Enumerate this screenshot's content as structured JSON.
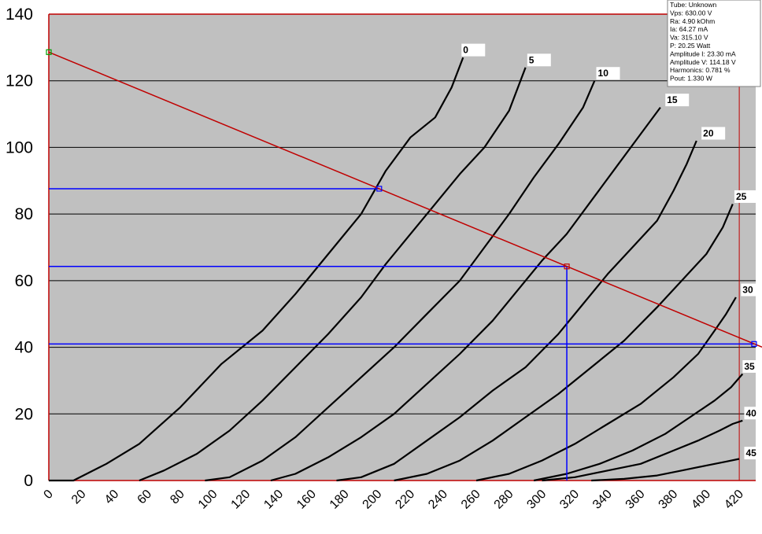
{
  "info_panel": {
    "lines": [
      "Tube: Unknown",
      "Vps: 630.00 V",
      "Ra: 4.90 kOhm",
      "Ia: 64.27 mA",
      "Va: 315.10 V",
      "P: 20.25 Watt",
      "Amplitude I: 23.30 mA",
      "Amplitude V: 114.18 V",
      "Harmonics: 0.781 %",
      "Pout: 1.330 W"
    ]
  },
  "colors": {
    "plot_bg": "#c0c0c0",
    "gridline": "#000000",
    "curve": "#000000",
    "load_line": "#c00000",
    "operating_lines": "#0000ff",
    "frame": "#c00000"
  },
  "chart_data": {
    "type": "line",
    "xlim": [
      0,
      430
    ],
    "ylim": [
      0,
      140
    ],
    "x_ticks": [
      0,
      20,
      40,
      60,
      80,
      100,
      120,
      140,
      160,
      180,
      200,
      220,
      240,
      260,
      280,
      300,
      320,
      340,
      360,
      380,
      400,
      420
    ],
    "y_ticks": [
      0,
      20,
      40,
      60,
      80,
      100,
      120,
      140
    ],
    "grid": "horizontal",
    "series": [
      {
        "name": "0",
        "x": [
          0,
          15,
          35,
          55,
          80,
          105,
          130,
          150,
          170,
          190,
          205,
          220,
          235,
          245,
          252
        ],
        "y": [
          0,
          0,
          5,
          11,
          22,
          35,
          45,
          56,
          68,
          80,
          93,
          103,
          109,
          118,
          127
        ]
      },
      {
        "name": "5",
        "x": [
          55,
          70,
          90,
          110,
          130,
          150,
          170,
          190,
          205,
          220,
          235,
          250,
          265,
          280,
          290
        ],
        "y": [
          0,
          3,
          8,
          15,
          24,
          34,
          44,
          55,
          65,
          74,
          83,
          92,
          100,
          111,
          124
        ]
      },
      {
        "name": "10",
        "x": [
          95,
          110,
          130,
          150,
          170,
          190,
          210,
          230,
          250,
          265,
          280,
          295,
          310,
          325,
          332
        ],
        "y": [
          0,
          1,
          6,
          13,
          22,
          31,
          40,
          50,
          60,
          70,
          80,
          91,
          101,
          112,
          120
        ]
      },
      {
        "name": "15",
        "x": [
          135,
          150,
          170,
          190,
          210,
          230,
          250,
          270,
          285,
          300,
          315,
          330,
          345,
          360,
          372
        ],
        "y": [
          0,
          2,
          7,
          13,
          20,
          29,
          38,
          48,
          57,
          66,
          74,
          84,
          94,
          104,
          112
        ]
      },
      {
        "name": "20",
        "x": [
          175,
          190,
          210,
          230,
          250,
          270,
          290,
          310,
          325,
          340,
          355,
          370,
          380,
          388,
          394
        ],
        "y": [
          0,
          1,
          5,
          12,
          19,
          27,
          34,
          44,
          53,
          62,
          70,
          78,
          87,
          95,
          102
        ]
      },
      {
        "name": "25",
        "x": [
          210,
          230,
          250,
          270,
          290,
          310,
          330,
          350,
          370,
          385,
          400,
          410,
          416
        ],
        "y": [
          0,
          2,
          6,
          12,
          19,
          26,
          34,
          42,
          52,
          60,
          68,
          76,
          83
        ]
      },
      {
        "name": "30",
        "x": [
          260,
          280,
          300,
          320,
          340,
          360,
          380,
          395,
          405,
          412,
          418
        ],
        "y": [
          0,
          2,
          6,
          11,
          17,
          23,
          31,
          38,
          45,
          50,
          55
        ]
      },
      {
        "name": "35",
        "x": [
          295,
          315,
          335,
          355,
          375,
          390,
          405,
          415,
          422
        ],
        "y": [
          0,
          2,
          5,
          9,
          14,
          19,
          24,
          28,
          32
        ]
      },
      {
        "name": "40",
        "x": [
          300,
          320,
          340,
          360,
          380,
          395,
          408,
          416,
          422
        ],
        "y": [
          0,
          1,
          3,
          5,
          9,
          12,
          15,
          17,
          18
        ]
      },
      {
        "name": "45",
        "x": [
          330,
          350,
          370,
          385,
          400,
          412,
          420
        ],
        "y": [
          0,
          0.5,
          1.5,
          3,
          4.5,
          5.7,
          6.5
        ]
      }
    ],
    "curve_labels": [
      {
        "text": "0",
        "x": 252,
        "y": 129
      },
      {
        "text": "5",
        "x": 292,
        "y": 126
      },
      {
        "text": "10",
        "x": 334,
        "y": 122
      },
      {
        "text": "15",
        "x": 376,
        "y": 114
      },
      {
        "text": "20",
        "x": 398,
        "y": 104
      },
      {
        "text": "25",
        "x": 418,
        "y": 85
      },
      {
        "text": "30",
        "x": 422,
        "y": 57
      },
      {
        "text": "35",
        "x": 423,
        "y": 34
      },
      {
        "text": "40",
        "x": 424,
        "y": 20
      },
      {
        "text": "45",
        "x": 424,
        "y": 8
      }
    ],
    "load_line": {
      "x": [
        0,
        430
      ],
      "y": [
        128.6,
        41
      ]
    },
    "operating_point": {
      "x": 315.1,
      "y": 64.27
    },
    "swing_points": [
      {
        "x": 201,
        "y": 87.6
      },
      {
        "x": 429,
        "y": 41
      }
    ],
    "plate_voltage_limit": 420
  }
}
